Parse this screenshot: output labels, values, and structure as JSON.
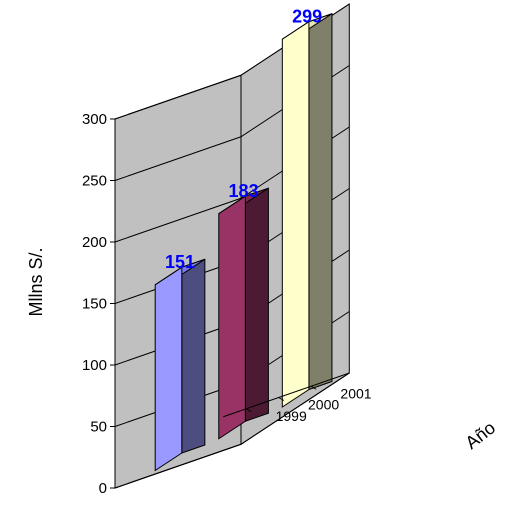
{
  "chart_data": {
    "type": "bar",
    "categories": [
      "1999",
      "2000",
      "2001"
    ],
    "values": [
      151,
      183,
      299
    ],
    "data_labels": [
      "151",
      "183",
      "299"
    ],
    "title": "",
    "xlabel": "Año",
    "ylabel": "Mllns S/.",
    "ylim": [
      0,
      300
    ],
    "yticks": [
      "0",
      "50",
      "100",
      "150",
      "200",
      "250",
      "300"
    ],
    "grid": true,
    "legend": "none",
    "style": "3d-column",
    "bar_colors": [
      "#9999ff",
      "#993366",
      "#ffffcc"
    ],
    "side_colors": [
      "#4d4d80",
      "#4d1a33",
      "#80806a"
    ],
    "top_colors": [
      "#7a7ae6",
      "#7a2952",
      "#e6e6b8"
    ],
    "wall_color": "#c0c0c0",
    "floor_color": "#808080",
    "label_color": "#0000ff"
  }
}
